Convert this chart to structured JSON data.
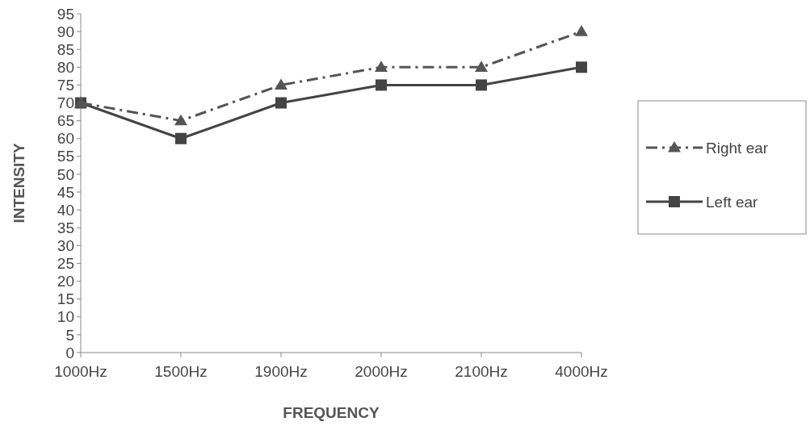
{
  "chart_data": {
    "type": "line",
    "xlabel": "FREQUENCY",
    "ylabel": "INTENSITY",
    "categories": [
      "1000Hz",
      "1500Hz",
      "1900Hz",
      "2000Hz",
      "2100Hz",
      "4000Hz"
    ],
    "series": [
      {
        "name": "Right ear",
        "color": "#555555",
        "values": [
          70,
          65,
          75,
          80,
          80,
          90
        ],
        "marker": "triangle",
        "line_style": "dashed"
      },
      {
        "name": "Left ear",
        "color": "#444444",
        "values": [
          70,
          60,
          70,
          75,
          75,
          80
        ],
        "marker": "square",
        "line_style": "solid"
      }
    ],
    "ylim": [
      0,
      95
    ],
    "yticks": [
      0,
      5,
      10,
      15,
      20,
      25,
      30,
      35,
      40,
      45,
      50,
      55,
      60,
      65,
      70,
      75,
      80,
      85,
      90,
      95
    ],
    "grid": false,
    "legend": "right"
  }
}
